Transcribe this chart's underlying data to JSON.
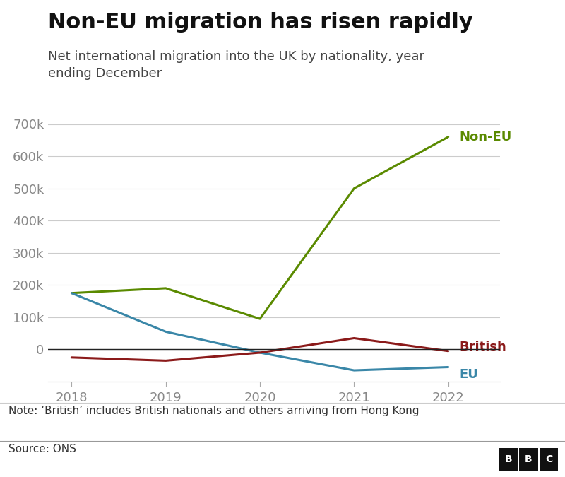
{
  "title": "Non-EU migration has risen rapidly",
  "subtitle": "Net international migration into the UK by nationality, year\nending December",
  "note": "Note: ‘British’ includes British nationals and others arriving from Hong Kong",
  "source": "Source: ONS",
  "years": [
    2018,
    2019,
    2020,
    2021,
    2022
  ],
  "non_eu": [
    175000,
    190000,
    95000,
    500000,
    660000
  ],
  "eu": [
    175000,
    55000,
    -10000,
    -65000,
    -55000
  ],
  "british": [
    -25000,
    -35000,
    -10000,
    35000,
    -5000
  ],
  "non_eu_color": "#5a8a00",
  "eu_color": "#3a87a8",
  "british_color": "#8b1a1a",
  "zero_line_color": "#222222",
  "grid_color": "#cccccc",
  "background_color": "#ffffff",
  "ylim": [
    -100000,
    700000
  ],
  "yticks": [
    0,
    100000,
    200000,
    300000,
    400000,
    500000,
    600000,
    700000
  ],
  "xlim_left": 2017.75,
  "xlim_right": 2022.55,
  "title_fontsize": 22,
  "subtitle_fontsize": 13,
  "tick_fontsize": 13,
  "label_fontsize": 13,
  "note_fontsize": 11,
  "line_width": 2.2,
  "non_eu_label": "Non-EU",
  "british_label": "British",
  "eu_label": "EU"
}
